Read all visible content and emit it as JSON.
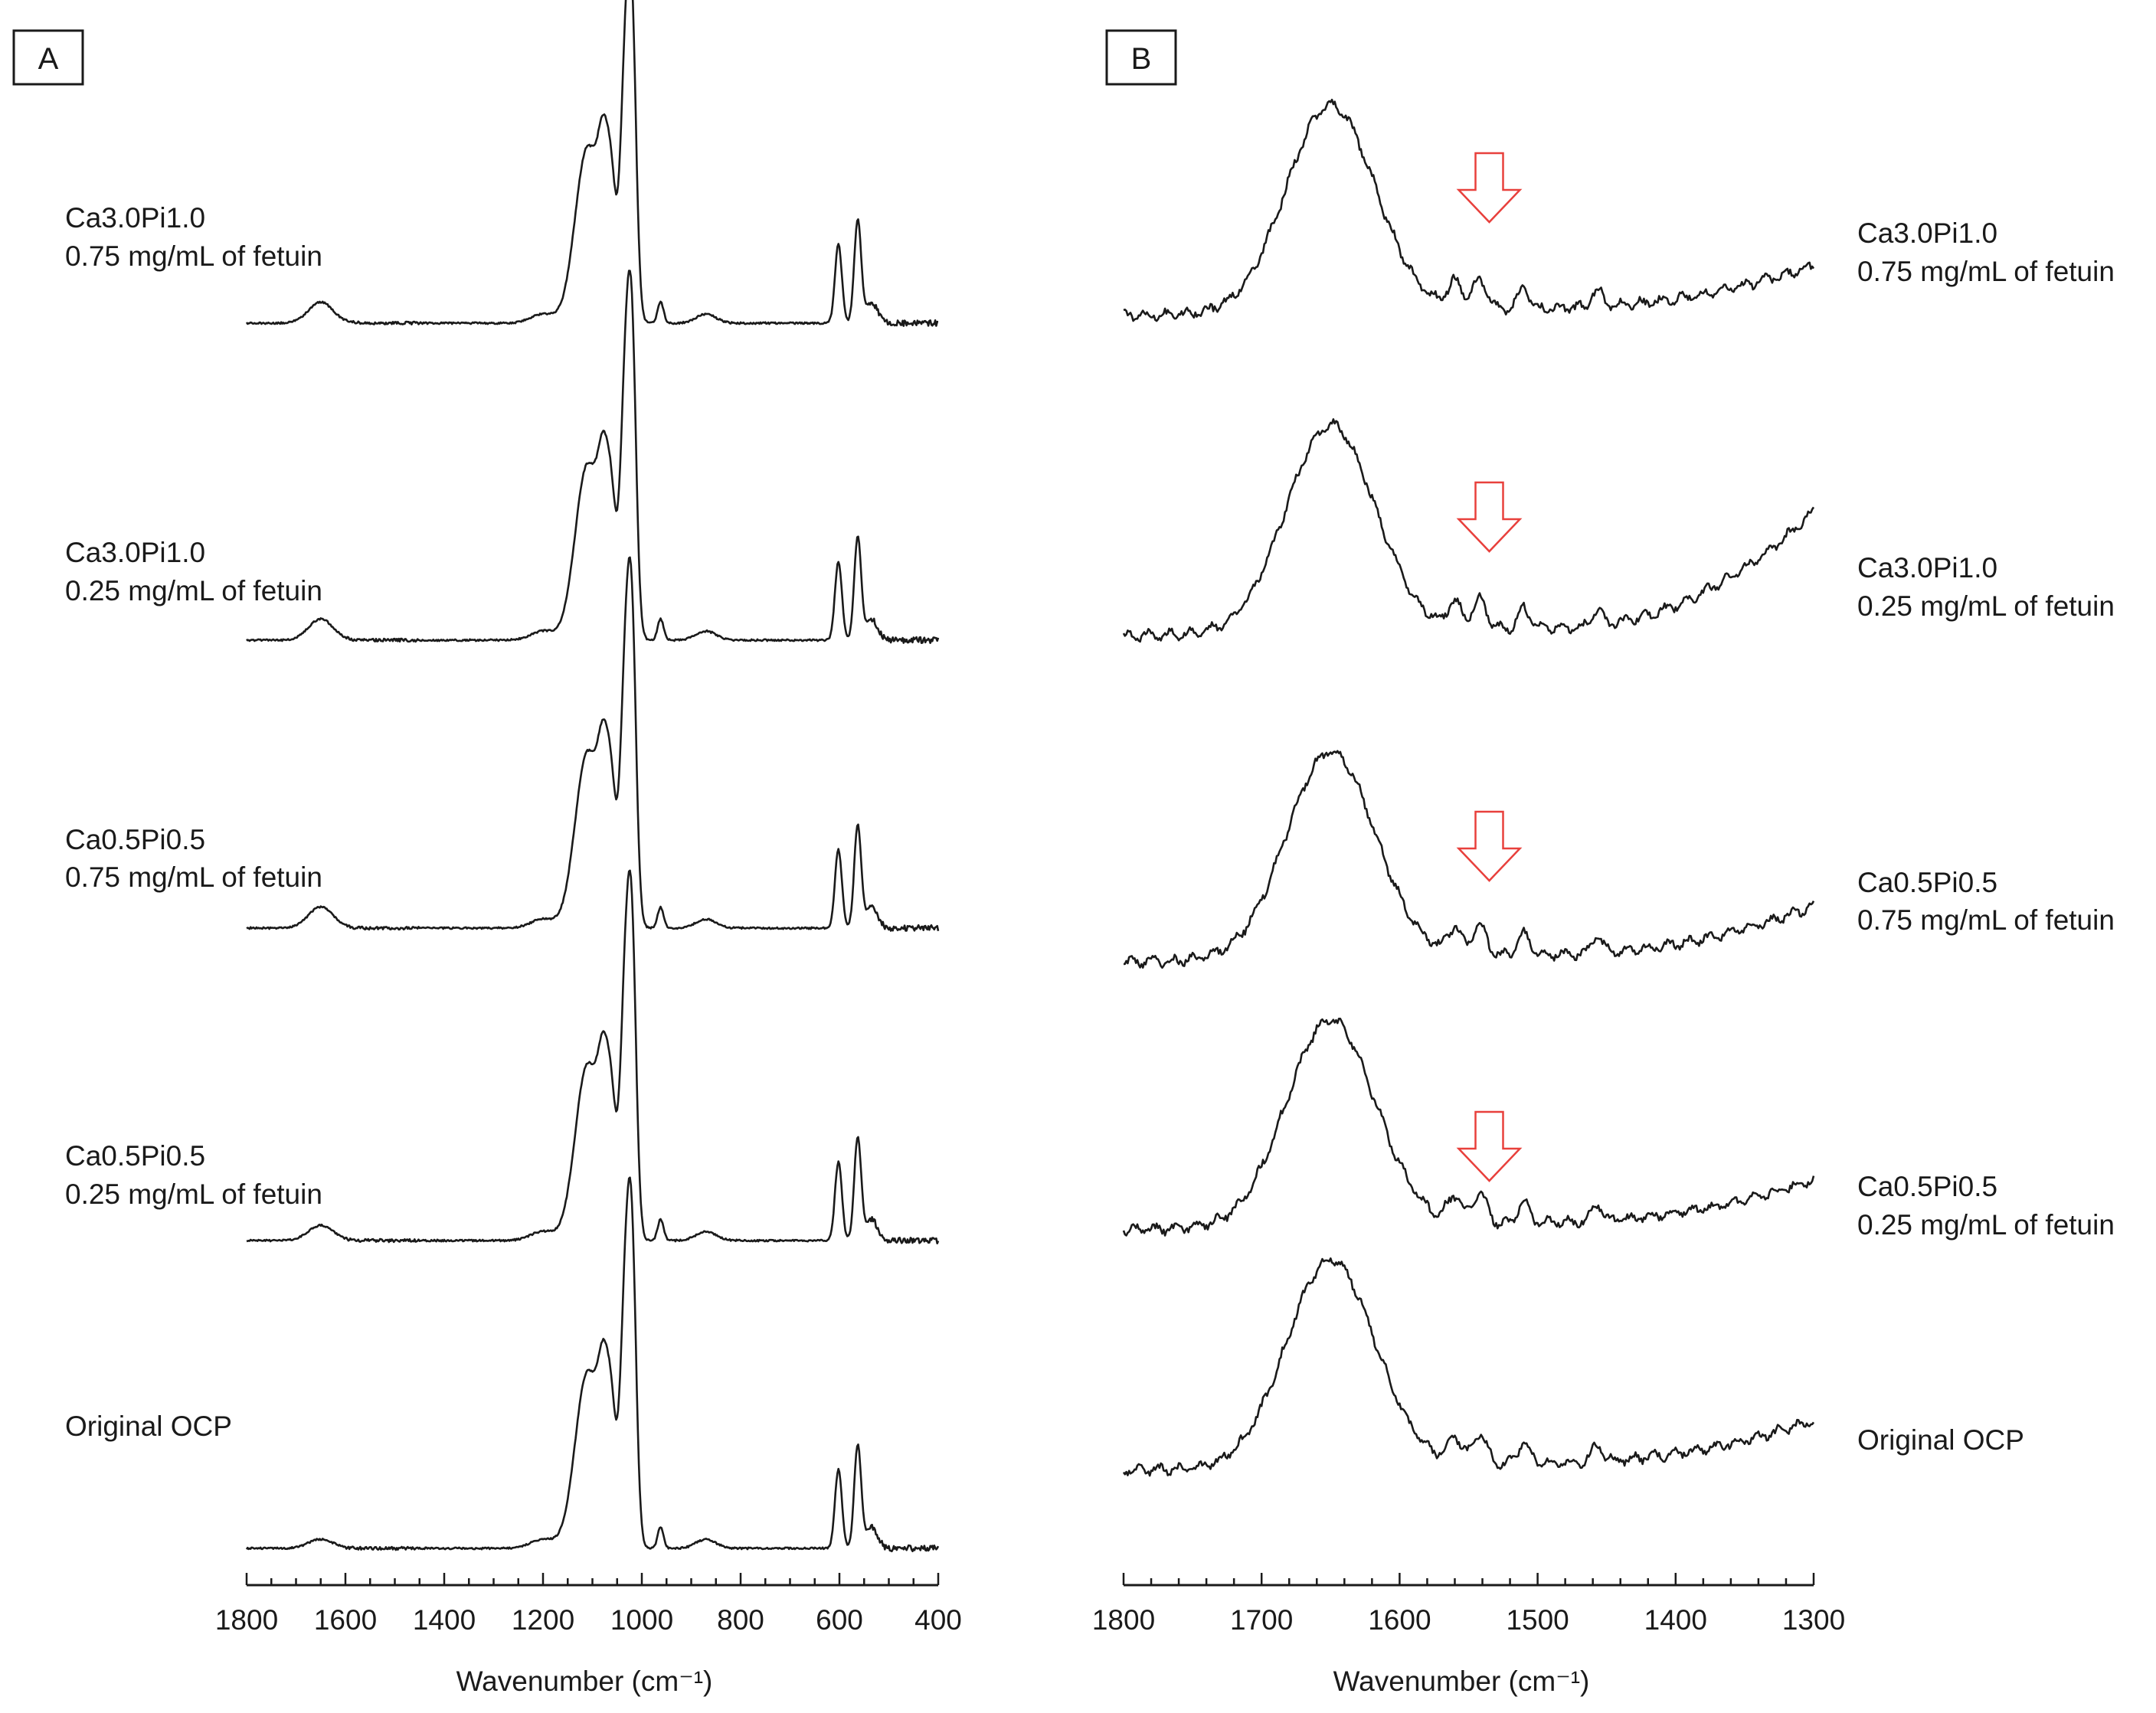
{
  "figure": {
    "panel_a_letter": "A",
    "panel_b_letter": "B",
    "trace_color": "#1a1a1a",
    "arrow_color": "#e8403c"
  },
  "chart_data": [
    {
      "type": "line",
      "panel": "A",
      "title": "",
      "xlabel": "Wavenumber (cm⁻¹)",
      "ylabel": "",
      "xlim": [
        1800,
        400
      ],
      "x_ticks": [
        "1800",
        "1600",
        "1400",
        "1200",
        "1000",
        "800",
        "600",
        "400"
      ],
      "peaks": [
        {
          "x": 1650,
          "height": 0.03,
          "width": 25
        },
        {
          "x": 1200,
          "height": 0.03,
          "width": 25
        },
        {
          "x": 1110,
          "height": 0.58,
          "width": 25
        },
        {
          "x": 1075,
          "height": 0.43,
          "width": 12
        },
        {
          "x": 1060,
          "height": 0.22,
          "width": 8
        },
        {
          "x": 1030,
          "height": 1.0,
          "width": 12
        },
        {
          "x": 1018,
          "height": 0.45,
          "width": 8
        },
        {
          "x": 962,
          "height": 0.07,
          "width": 6
        },
        {
          "x": 870,
          "height": 0.03,
          "width": 20
        },
        {
          "x": 602,
          "height": 0.26,
          "width": 7
        },
        {
          "x": 563,
          "height": 0.34,
          "width": 7
        },
        {
          "x": 535,
          "height": 0.07,
          "width": 12
        }
      ],
      "series": [
        {
          "name": "Ca3.0Pi1.0 / 0.75 mg/mL of fetuin",
          "amide_intensity": 0.07
        },
        {
          "name": "Ca3.0Pi1.0 / 0.25 mg/mL of fetuin",
          "amide_intensity": 0.07
        },
        {
          "name": "Ca0.5Pi0.5 / 0.75 mg/mL of fetuin",
          "amide_intensity": 0.07
        },
        {
          "name": "Ca0.5Pi0.5 / 0.25 mg/mL of fetuin",
          "amide_intensity": 0.05
        },
        {
          "name": "Original OCP",
          "amide_intensity": 0.03
        }
      ]
    },
    {
      "type": "line",
      "panel": "B",
      "title": "",
      "xlabel": "Wavenumber (cm⁻¹)",
      "ylabel": "",
      "xlim": [
        1800,
        1300
      ],
      "x_ticks": [
        "1800",
        "1700",
        "1600",
        "1500",
        "1400",
        "1300"
      ],
      "peaks": [
        {
          "x": 1650,
          "height": 1.0,
          "width": 32
        },
        {
          "x": 1560,
          "height": 0.12,
          "width": 5
        },
        {
          "x": 1542,
          "height": 0.14,
          "width": 5
        },
        {
          "x": 1510,
          "height": 0.1,
          "width": 4
        },
        {
          "x": 1457,
          "height": 0.08,
          "width": 4
        }
      ],
      "arrow_position": 1535,
      "series": [
        {
          "name": "Ca3.0Pi1.0 / 0.75 mg/mL of fetuin",
          "baseline_slope": 0.3,
          "has_arrow": true
        },
        {
          "name": "Ca3.0Pi1.0 / 0.25 mg/mL of fetuin",
          "baseline_slope": 0.9,
          "has_arrow": true
        },
        {
          "name": "Ca0.5Pi0.5 / 0.75 mg/mL of fetuin",
          "baseline_slope": 0.35,
          "has_arrow": true
        },
        {
          "name": "Ca0.5Pi0.5 / 0.25 mg/mL of fetuin",
          "baseline_slope": 0.3,
          "has_arrow": true
        },
        {
          "name": "Original OCP",
          "baseline_slope": 0.3,
          "has_arrow": false
        }
      ]
    }
  ],
  "labels": {
    "a": [
      {
        "line1": "Ca3.0Pi1.0",
        "line2": "0.75 mg/mL of fetuin"
      },
      {
        "line1": "Ca3.0Pi1.0",
        "line2": "0.25 mg/mL of fetuin"
      },
      {
        "line1": "Ca0.5Pi0.5",
        "line2": "0.75 mg/mL of fetuin"
      },
      {
        "line1": "Ca0.5Pi0.5",
        "line2": "0.25 mg/mL of fetuin"
      },
      {
        "line1": "Original OCP",
        "line2": ""
      }
    ],
    "b": [
      {
        "line1": "Ca3.0Pi1.0",
        "line2": "0.75 mg/mL of fetuin"
      },
      {
        "line1": "Ca3.0Pi1.0",
        "line2": "0.25 mg/mL of fetuin"
      },
      {
        "line1": "Ca0.5Pi0.5",
        "line2": "0.75 mg/mL of fetuin"
      },
      {
        "line1": "Ca0.5Pi0.5",
        "line2": "0.25 mg/mL of fetuin"
      },
      {
        "line1": "Original OCP",
        "line2": ""
      }
    ]
  }
}
